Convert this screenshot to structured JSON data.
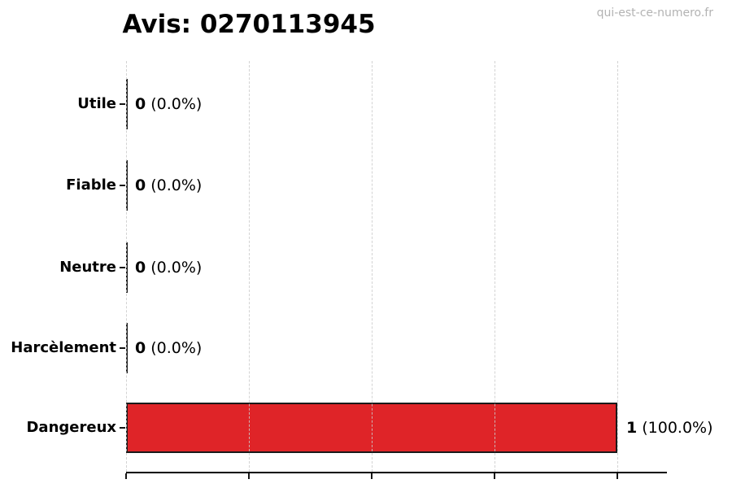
{
  "chart_data": {
    "type": "bar",
    "orientation": "horizontal",
    "title": "Avis: 0270113945",
    "watermark": "qui-est-ce-numero.fr",
    "categories": [
      "Utile",
      "Fiable",
      "Neutre",
      "Harcèlement",
      "Dangereux"
    ],
    "values": [
      0,
      0,
      0,
      0,
      1
    ],
    "counts": [
      "0",
      "0",
      "0",
      "0",
      "1"
    ],
    "pcts": [
      "(0.0%)",
      "(0.0%)",
      "(0.0%)",
      "(0.0%)",
      "(100.0%)"
    ],
    "total": 1,
    "xlim": [
      0,
      1.1
    ],
    "xticks": [
      0,
      0.25,
      0.5,
      0.75,
      1.0
    ],
    "xtick_labels_visible": false,
    "grid": "vertical-dashed",
    "legend": "none",
    "colors": {
      "bar": "#df2428",
      "bar_edge": "#1a1a1a",
      "grid": "#cccccc",
      "text": "#000000",
      "watermark": "#b3b3b3"
    }
  }
}
